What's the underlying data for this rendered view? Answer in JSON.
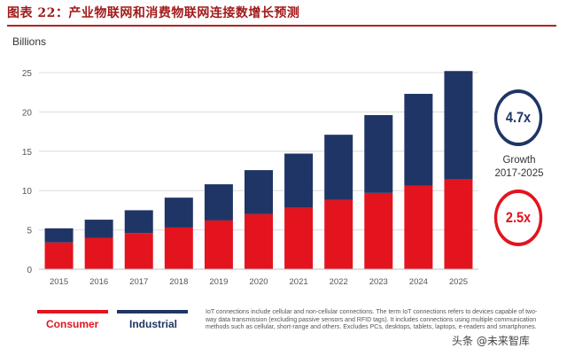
{
  "header": {
    "title": "图表 22：产业物联网和消费物联网连接数增长预测"
  },
  "chart_data": {
    "type": "bar",
    "stacked": true,
    "unit_label": "Billions",
    "categories": [
      "2015",
      "2016",
      "2017",
      "2018",
      "2019",
      "2020",
      "2021",
      "2022",
      "2023",
      "2024",
      "2025"
    ],
    "series": [
      {
        "name": "Consumer",
        "color": "#e3141e",
        "values": [
          3.4,
          4.0,
          4.6,
          5.3,
          6.2,
          7.0,
          7.8,
          8.8,
          9.7,
          10.6,
          11.4
        ]
      },
      {
        "name": "Industrial",
        "color": "#1f3566",
        "values": [
          1.8,
          2.3,
          2.9,
          3.8,
          4.6,
          5.6,
          6.9,
          8.3,
          9.9,
          11.7,
          13.8
        ]
      }
    ],
    "y_ticks": [
      "0",
      "5",
      "10",
      "15",
      "20",
      "25"
    ],
    "ylim": [
      0,
      25
    ],
    "grid": true,
    "annotations": {
      "industrial_growth": "4.7x",
      "consumer_growth": "2.5x",
      "growth_label_line1": "Growth",
      "growth_label_line2": "2017-2025"
    }
  },
  "legend": {
    "consumer": "Consumer",
    "industrial": "Industrial"
  },
  "footnote": "IoT connections include cellular and non-cellular connections. The term IoT connections refers to devices capable of two-way data transmission (excluding passive sensors and RFID tags). It includes connections using multiple communication methods such as cellular, short-range and others. Excludes PCs, desktops, tablets, laptops, e-readers and smartphones.",
  "watermark": "头条 @未来智库"
}
